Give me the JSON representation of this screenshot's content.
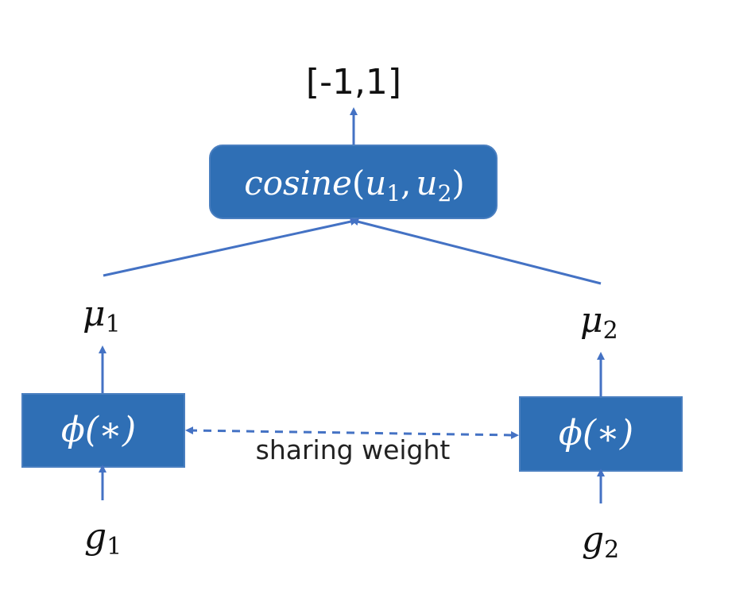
{
  "output_label": "[-1,1]",
  "cosine_box": {
    "fn": "cosine",
    "open": "(",
    "arg1": "u",
    "arg1_sub": "1",
    "sep": ",",
    "arg2": "u",
    "arg2_sub": "2",
    "close": ")"
  },
  "left": {
    "mu": "μ",
    "mu_sub": "1",
    "phi": "ϕ(∗)",
    "g": "g",
    "g_sub": "1"
  },
  "right": {
    "mu": "μ",
    "mu_sub": "2",
    "phi": "ϕ(∗)",
    "g": "g",
    "g_sub": "2"
  },
  "sharing_label": "sharing weight",
  "colors": {
    "box_fill": "#2f6fb5",
    "edge": "#4472c4",
    "box_text": "#ffffff",
    "text": "#111111"
  }
}
